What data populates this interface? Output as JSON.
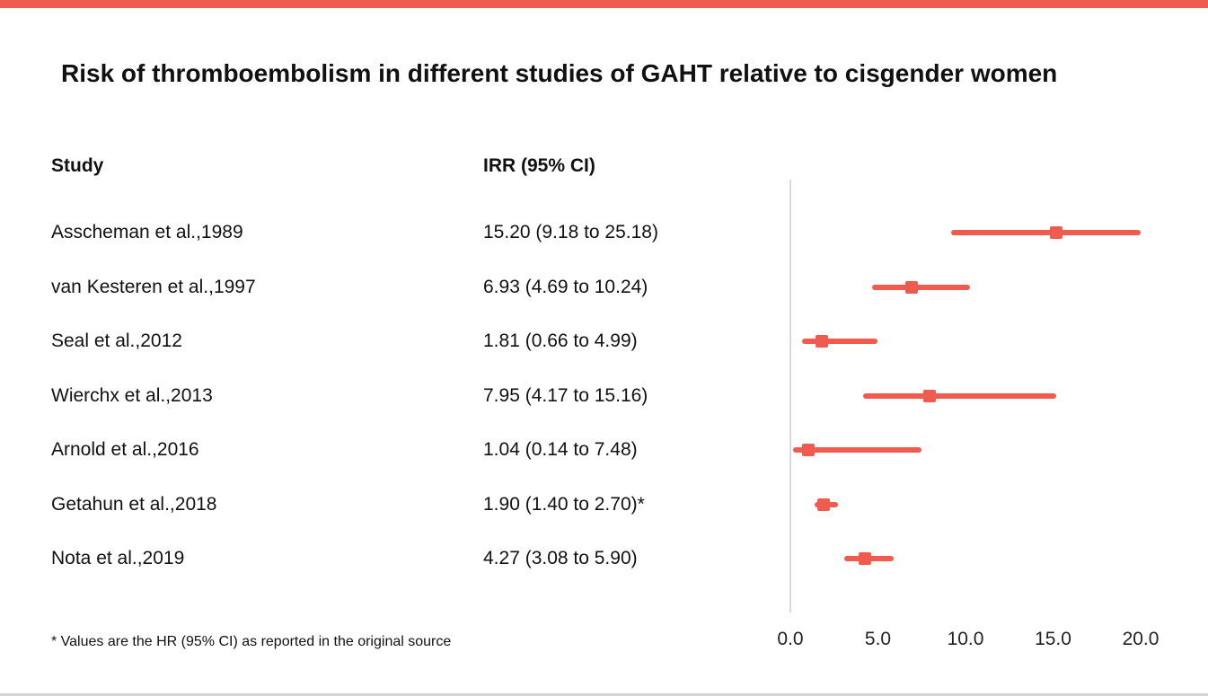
{
  "chart_data": {
    "type": "forest",
    "title": "Risk of thromboembolism in different studies of GAHT relative to cisgender women",
    "columns": {
      "study": "Study",
      "irr": "IRR (95% CI)"
    },
    "studies": [
      {
        "label": "Asscheman et al.,1989",
        "irr_text": "15.20 (9.18 to 25.18)",
        "est": 15.2,
        "lo": 9.18,
        "hi": 25.18
      },
      {
        "label": "van Kesteren et al.,1997",
        "irr_text": "6.93 (4.69 to 10.24)",
        "est": 6.93,
        "lo": 4.69,
        "hi": 10.24
      },
      {
        "label": "Seal et al.,2012",
        "irr_text": "1.81 (0.66 to 4.99)",
        "est": 1.81,
        "lo": 0.66,
        "hi": 4.99
      },
      {
        "label": "Wierchx et al.,2013",
        "irr_text": "7.95 (4.17 to 15.16)",
        "est": 7.95,
        "lo": 4.17,
        "hi": 15.16
      },
      {
        "label": "Arnold et al.,2016",
        "irr_text": "1.04 (0.14 to 7.48)",
        "est": 1.04,
        "lo": 0.14,
        "hi": 7.48
      },
      {
        "label": "Getahun et al.,2018",
        "irr_text": "1.90 (1.40 to 2.70)*",
        "est": 1.9,
        "lo": 1.4,
        "hi": 2.7
      },
      {
        "label": "Nota et al.,2019",
        "irr_text": "4.27 (3.08 to 5.90)",
        "est": 4.27,
        "lo": 3.08,
        "hi": 5.9
      }
    ],
    "x_ticks": [
      {
        "value": 0,
        "label": "0.0"
      },
      {
        "value": 5,
        "label": "5.0"
      },
      {
        "value": 10,
        "label": "10.0"
      },
      {
        "value": 15,
        "label": "15.0"
      },
      {
        "value": 20,
        "label": "20.0"
      }
    ],
    "xlim": [
      0,
      20
    ],
    "xlabel": "",
    "ylabel": "",
    "grid": false,
    "legend": "none",
    "footnote": "* Values are the HR (95% CI) as reported in the original source",
    "accent_color": "#ef5b4e",
    "axis_color": "#d9d9d9"
  }
}
